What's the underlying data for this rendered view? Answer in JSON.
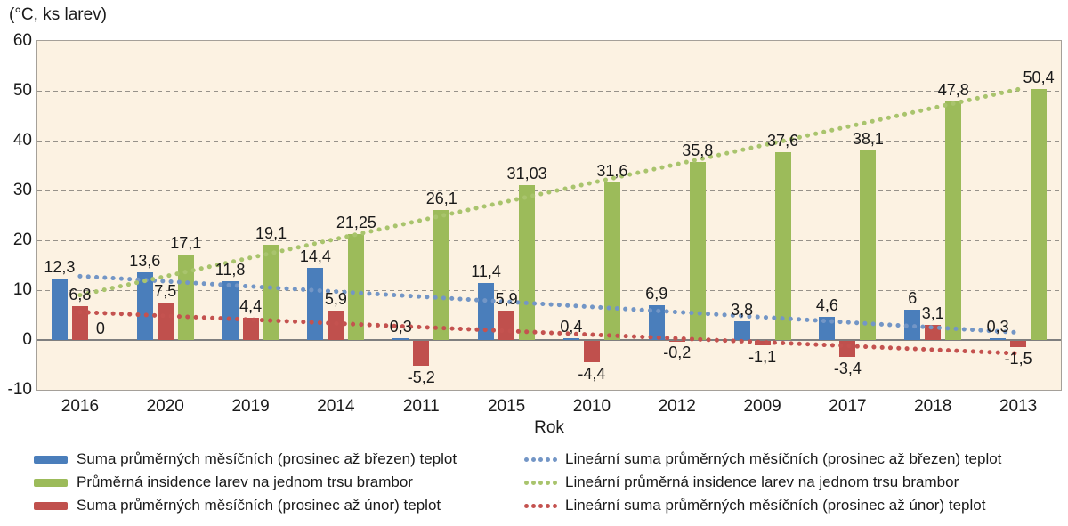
{
  "colors": {
    "plot_bg": "#fcf2e2",
    "grid": "#97928a",
    "axis": "#7f7f7f",
    "frame": "#a5a099",
    "text": "#1a1a1a",
    "bar_blue": "#4a7ebb",
    "bar_green": "#9cbb5a",
    "bar_red": "#c0504d"
  },
  "chart_data": {
    "type": "bar",
    "title": "(°C, ks larev)",
    "xlabel": "Rok",
    "ylabel": "",
    "ylim": [
      -10,
      60
    ],
    "yticks": [
      "60",
      "50",
      "40",
      "30",
      "20",
      "10",
      "0",
      "-10"
    ],
    "grid": true,
    "legend_position": "bottom",
    "categories": [
      "2016",
      "2020",
      "2019",
      "2014",
      "2011",
      "2015",
      "2010",
      "2012",
      "2009",
      "2017",
      "2018",
      "2013"
    ],
    "series": [
      {
        "name": "Suma průměrných měsíčních (prosinec až březen) teplot",
        "color": "#4a7ebb",
        "key": "blue",
        "values": [
          12.3,
          13.6,
          11.8,
          14.4,
          0.3,
          11.4,
          0.4,
          6.9,
          3.8,
          4.6,
          6,
          0.3
        ],
        "labels": [
          "12,3",
          "13,6",
          "11,8",
          "14,4",
          "0,3",
          "11,4",
          "0,4",
          "6,9",
          "3,8",
          "4,6",
          "6",
          "0,3"
        ]
      },
      {
        "name": "Průměrná insidence larev na jednom trsu brambor",
        "color": "#9cbb5a",
        "key": "green",
        "values": [
          0,
          17.1,
          19.1,
          21.25,
          26.1,
          31.03,
          31.6,
          35.8,
          37.6,
          38.1,
          47.8,
          50.4
        ],
        "labels": [
          "0",
          "17,1",
          "19,1",
          "21,25",
          "26,1",
          "31,03",
          "31,6",
          "35,8",
          "37,6",
          "38,1",
          "47,8",
          "50,4"
        ]
      },
      {
        "name": "Suma průměrných měsíčních (prosinec až únor) teplot",
        "color": "#c0504d",
        "key": "red",
        "values": [
          6.8,
          7.5,
          4.4,
          5.9,
          -5.2,
          5.9,
          -4.4,
          -0.2,
          -1.1,
          -3.4,
          3.1,
          -1.5
        ],
        "labels": [
          "6,8",
          "7,5",
          "4,4",
          "5,9",
          "-5,2",
          "5,9",
          "-4,4",
          "-0,2",
          "-1,1",
          "-3,4",
          "3,1",
          "-1,5"
        ]
      }
    ],
    "draw_order": [
      0,
      2,
      1
    ],
    "trendlines": [
      {
        "name": "Lineární suma průměrných měsíčních (prosinec až březen) teplot",
        "color": "#7396c6",
        "key": "blue",
        "start": 12.8,
        "end": 1.5
      },
      {
        "name": "Lineární průměrná insidence larev na jednom trsu brambor",
        "color": "#a9c46d",
        "key": "green",
        "start": 9.0,
        "end": 50.3
      },
      {
        "name": "Lineární suma průměrných měsíčních (prosinec až únor) teplot",
        "color": "#c4524f",
        "key": "red",
        "start": 5.6,
        "end": -2.7
      }
    ]
  },
  "legend": {
    "left": [
      {
        "swatch": "bar",
        "color": "#4a7ebb",
        "label": "Suma průměrných měsíčních (prosinec až březen) teplot"
      },
      {
        "swatch": "bar",
        "color": "#9cbb5a",
        "label": "Průměrná insidence larev na jednom trsu brambor"
      },
      {
        "swatch": "bar",
        "color": "#c0504d",
        "label": "Suma průměrných měsíčních (prosinec až únor) teplot"
      }
    ],
    "right": [
      {
        "swatch": "dots",
        "color": "#7396c6",
        "label": "Lineární suma průměrných měsíčních (prosinec až březen) teplot"
      },
      {
        "swatch": "dots",
        "color": "#a9c46d",
        "label": "Lineární průměrná insidence larev na jednom trsu brambor"
      },
      {
        "swatch": "dots",
        "color": "#c4524f",
        "label": "Lineární suma průměrných měsíčních (prosinec až únor) teplot"
      }
    ]
  }
}
